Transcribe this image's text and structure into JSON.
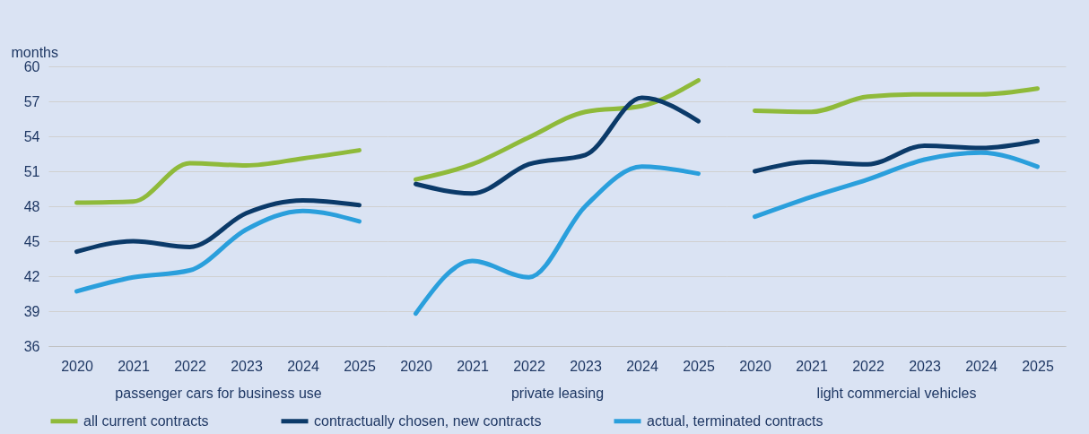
{
  "chart_data": [
    {
      "type": "line",
      "ylabel": "months",
      "xlabel": "passenger cars for business use",
      "categories": [
        "2020",
        "2021",
        "2022",
        "2023",
        "2024",
        "2025"
      ],
      "ylim": [
        36,
        60
      ],
      "yticks": [
        36,
        39,
        42,
        45,
        48,
        51,
        54,
        57,
        60
      ],
      "grid": "y",
      "legend": "bottom",
      "series": [
        {
          "name": "all current contracts",
          "color": "#8fba3a",
          "values": [
            48.3,
            48.4,
            51.7,
            51.5,
            52.1,
            52.8
          ]
        },
        {
          "name": "contractually chosen, new contracts",
          "color": "#0b3a69",
          "values": [
            44.1,
            45.0,
            44.5,
            47.4,
            48.5,
            48.1
          ]
        },
        {
          "name": "actual, terminated contracts",
          "color": "#2a9fdc",
          "values": [
            40.7,
            41.9,
            42.5,
            46.0,
            47.6,
            46.7
          ]
        }
      ]
    },
    {
      "type": "line",
      "xlabel": "private leasing",
      "categories": [
        "2020",
        "2021",
        "2022",
        "2023",
        "2024",
        "2025"
      ],
      "ylim": [
        36,
        60
      ],
      "yticks": [
        36,
        39,
        42,
        45,
        48,
        51,
        54,
        57,
        60
      ],
      "grid": "y",
      "tick_labels": "x",
      "series": [
        {
          "name": "all current contracts",
          "color": "#8fba3a",
          "values": [
            50.3,
            51.6,
            53.9,
            56.1,
            56.6,
            58.8
          ]
        },
        {
          "name": "contractually chosen, new contracts",
          "color": "#0b3a69",
          "values": [
            49.9,
            49.1,
            51.6,
            52.4,
            57.3,
            55.3
          ]
        },
        {
          "name": "actual, terminated contracts",
          "color": "#2a9fdc",
          "values": [
            38.8,
            43.3,
            41.9,
            48.0,
            51.4,
            50.8
          ]
        }
      ]
    },
    {
      "type": "line",
      "xlabel": "light commercial vehicles",
      "categories": [
        "2020",
        "2021",
        "2022",
        "2023",
        "2024",
        "2025"
      ],
      "ylim": [
        36,
        60
      ],
      "yticks": [
        36,
        39,
        42,
        45,
        48,
        51,
        54,
        57,
        60
      ],
      "grid": "y",
      "tick_labels": "x",
      "series": [
        {
          "name": "all current contracts",
          "color": "#8fba3a",
          "values": [
            56.2,
            56.1,
            57.4,
            57.6,
            57.6,
            58.1
          ]
        },
        {
          "name": "contractually chosen, new contracts",
          "color": "#0b3a69",
          "values": [
            51.0,
            51.8,
            51.6,
            53.2,
            53.0,
            53.6
          ]
        },
        {
          "name": "actual, terminated contracts",
          "color": "#2a9fdc",
          "values": [
            47.1,
            48.8,
            50.3,
            52.0,
            52.6,
            51.4
          ]
        }
      ]
    }
  ]
}
